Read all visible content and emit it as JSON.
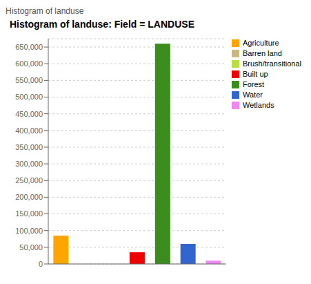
{
  "chart_data": {
    "type": "bar",
    "title": "Histogram of landuse: Field = LANDUSE",
    "annotations": [
      "Histogram of landuse"
    ],
    "categories": [
      "Agriculture",
      "Barren land",
      "Brush/transitional",
      "Built up",
      "Forest",
      "Water",
      "Wetlands"
    ],
    "values": [
      85000,
      0,
      0,
      35000,
      660000,
      60000,
      10000
    ],
    "colors": [
      "#FFA500",
      "#C8B882",
      "#BBDD44",
      "#EE0000",
      "#3A8C1C",
      "#3366CC",
      "#EE88EE"
    ],
    "ylim": [
      0,
      675000
    ],
    "yticks": [
      0,
      {
        "value": 50000,
        "label": "50,000"
      },
      {
        "value": 100000,
        "label": "100,000"
      },
      {
        "value": 150000,
        "label": "150,000"
      },
      {
        "value": 200000,
        "label": "200,000"
      },
      {
        "value": 250000,
        "label": "250,000"
      },
      {
        "value": 300000,
        "label": "300,000"
      },
      {
        "value": 350000,
        "label": "350,000"
      },
      {
        "value": 400000,
        "label": "400,000"
      },
      {
        "value": 450000,
        "label": "450,000"
      },
      {
        "value": 500000,
        "label": "500,000"
      },
      {
        "value": 550000,
        "label": "550,000"
      },
      {
        "value": 600000,
        "label": "600,000"
      },
      {
        "value": 650000,
        "label": "650,000"
      }
    ],
    "grid": true,
    "legend": "upper right",
    "tick_labels": "y"
  }
}
